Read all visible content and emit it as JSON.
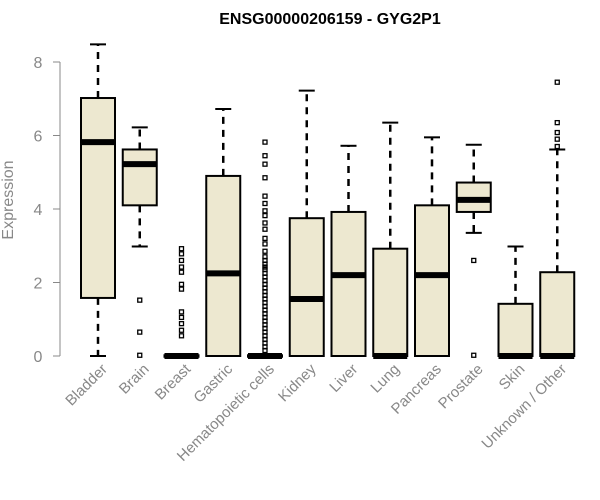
{
  "chart_data": {
    "type": "boxplot",
    "title": "ENSG00000206159 - GYG2P1",
    "xlabel": "",
    "ylabel": "Expression",
    "ylim": [
      0,
      8.5
    ],
    "yticks": [
      0,
      2,
      4,
      6,
      8
    ],
    "box_fill": "#ede8d0",
    "categories": [
      "Bladder",
      "Brain",
      "Breast",
      "Gastric",
      "Hematopoietic cells",
      "Kidney",
      "Liver",
      "Lung",
      "Pancreas",
      "Prostate",
      "Skin",
      "Unknown / Other"
    ],
    "boxes": [
      {
        "name": "Bladder",
        "min": 0.0,
        "q1": 1.58,
        "median": 5.82,
        "q3": 7.02,
        "max": 8.48,
        "outliers": []
      },
      {
        "name": "Brain",
        "min": 2.98,
        "q1": 4.1,
        "median": 5.22,
        "q3": 5.62,
        "max": 6.22,
        "outliers": [
          1.52,
          0.65,
          0.02
        ]
      },
      {
        "name": "Breast",
        "min": 0.0,
        "q1": 0.0,
        "median": 0.0,
        "q3": 0.02,
        "max": 0.05,
        "outliers": [
          2.92,
          2.78,
          2.6,
          2.42,
          2.28,
          1.95,
          1.82,
          1.2,
          1.05,
          0.88,
          0.7,
          0.55
        ]
      },
      {
        "name": "Gastric",
        "min": 0.0,
        "q1": 0.0,
        "median": 2.25,
        "q3": 4.9,
        "max": 6.72,
        "outliers": []
      },
      {
        "name": "Hematopoietic cells",
        "min": 0.0,
        "q1": 0.0,
        "median": 0.0,
        "q3": 0.02,
        "max": 0.05,
        "outliers": [
          5.82,
          5.45,
          5.22,
          4.85,
          4.35,
          4.15,
          3.95,
          3.82,
          3.62,
          3.45,
          3.2,
          3.05,
          2.85,
          2.7,
          2.6,
          2.5,
          2.42,
          2.35,
          2.25,
          2.15,
          2.05,
          1.95,
          1.85,
          1.75,
          1.65,
          1.55,
          1.45,
          1.35,
          1.25,
          1.15,
          1.05,
          0.95,
          0.85,
          0.75,
          0.65,
          0.55,
          0.45,
          0.35,
          0.25,
          0.15
        ]
      },
      {
        "name": "Kidney",
        "min": 0.0,
        "q1": 0.0,
        "median": 1.55,
        "q3": 3.75,
        "max": 7.22,
        "outliers": []
      },
      {
        "name": "Liver",
        "min": 0.0,
        "q1": 0.0,
        "median": 2.2,
        "q3": 3.92,
        "max": 5.72,
        "outliers": []
      },
      {
        "name": "Lung",
        "min": 0.0,
        "q1": 0.0,
        "median": 0.0,
        "q3": 2.92,
        "max": 6.35,
        "outliers": []
      },
      {
        "name": "Pancreas",
        "min": 0.0,
        "q1": 0.0,
        "median": 2.2,
        "q3": 4.1,
        "max": 5.95,
        "outliers": []
      },
      {
        "name": "Prostate",
        "min": 3.35,
        "q1": 3.92,
        "median": 4.25,
        "q3": 4.72,
        "max": 5.75,
        "outliers": [
          2.6,
          0.02
        ]
      },
      {
        "name": "Skin",
        "min": 0.0,
        "q1": 0.0,
        "median": 0.0,
        "q3": 1.42,
        "max": 2.98,
        "outliers": []
      },
      {
        "name": "Unknown / Other",
        "min": 0.0,
        "q1": 0.0,
        "median": 0.0,
        "q3": 2.28,
        "max": 5.62,
        "outliers": [
          7.45,
          6.35,
          6.08,
          5.9,
          5.7
        ]
      }
    ]
  }
}
